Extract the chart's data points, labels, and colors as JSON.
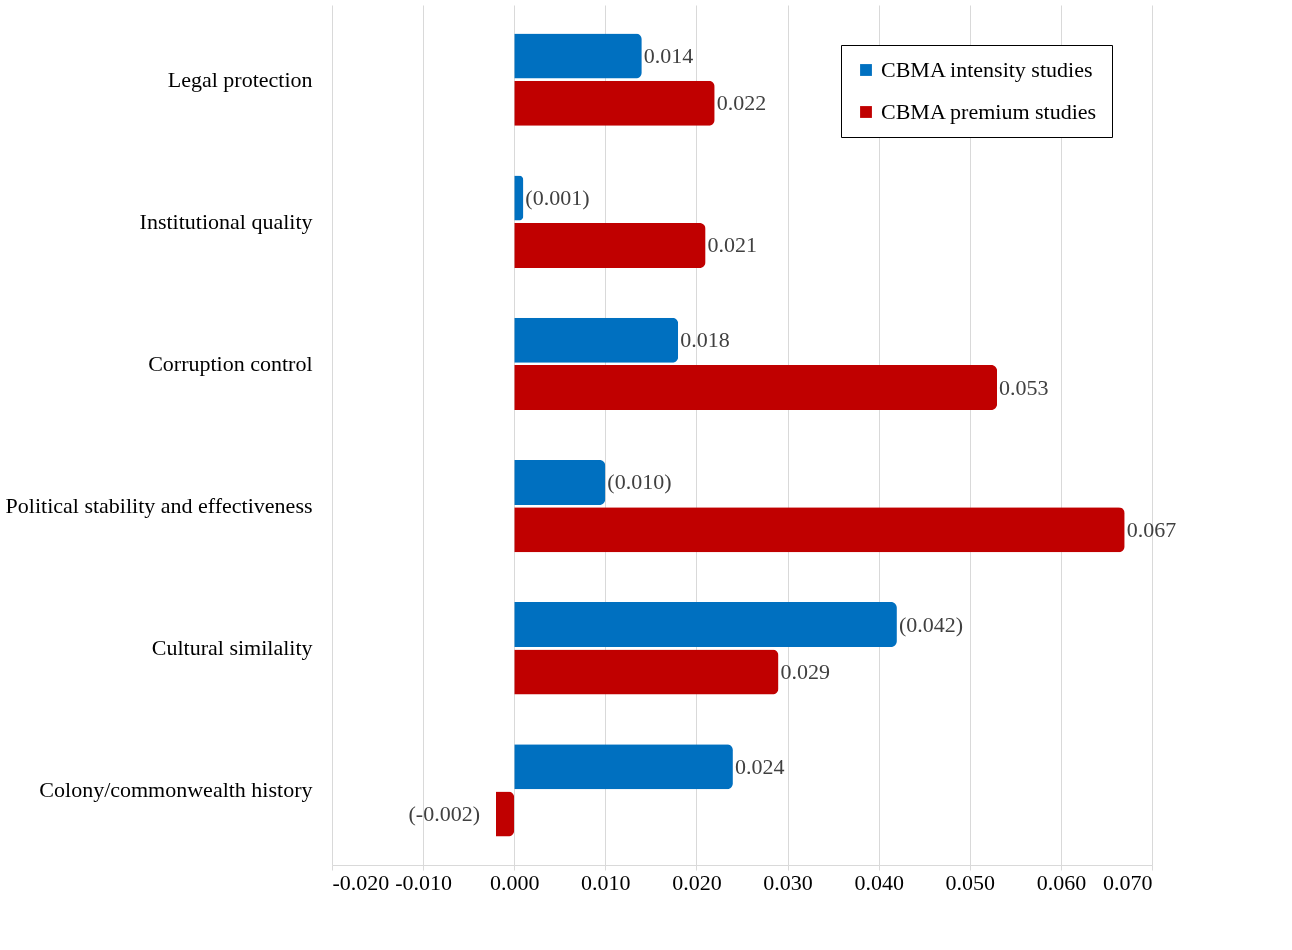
{
  "chart_data": {
    "type": "bar",
    "orientation": "horizontal",
    "categories": [
      "Legal protection",
      "Institutional quality",
      "Corruption control",
      "Political stability and effectiveness",
      "Cultural similality",
      "Colony/commonwealth history"
    ],
    "series": [
      {
        "name": "CBMA intensity studies",
        "color": "#0070c0",
        "values": [
          0.014,
          0.001,
          0.018,
          0.01,
          0.042,
          0.024
        ],
        "value_labels": [
          "0.014",
          "(0.001)",
          "0.018",
          "(0.010)",
          "(0.042)",
          "0.024"
        ]
      },
      {
        "name": "CBMA premium studies",
        "color": "#c00000",
        "values": [
          0.022,
          0.021,
          0.053,
          0.067,
          0.029,
          -0.002
        ],
        "value_labels": [
          "0.022",
          "0.021",
          "0.053",
          "0.067",
          "0.029",
          "(-0.002)"
        ]
      }
    ],
    "xlim": [
      -0.02,
      0.07
    ],
    "xticks": [
      {
        "value": -0.02,
        "label": "-0.020"
      },
      {
        "value": -0.01,
        "label": "-0.010"
      },
      {
        "value": 0,
        "label": "0.000"
      },
      {
        "value": 0.01,
        "label": "0.010"
      },
      {
        "value": 0.02,
        "label": "0.020"
      },
      {
        "value": 0.03,
        "label": "0.030"
      },
      {
        "value": 0.04,
        "label": "0.040"
      },
      {
        "value": 0.05,
        "label": "0.050"
      },
      {
        "value": 0.06,
        "label": "0.060"
      },
      {
        "value": 0.07,
        "label": "0.070"
      }
    ],
    "grid": "x",
    "legend": "top right"
  }
}
